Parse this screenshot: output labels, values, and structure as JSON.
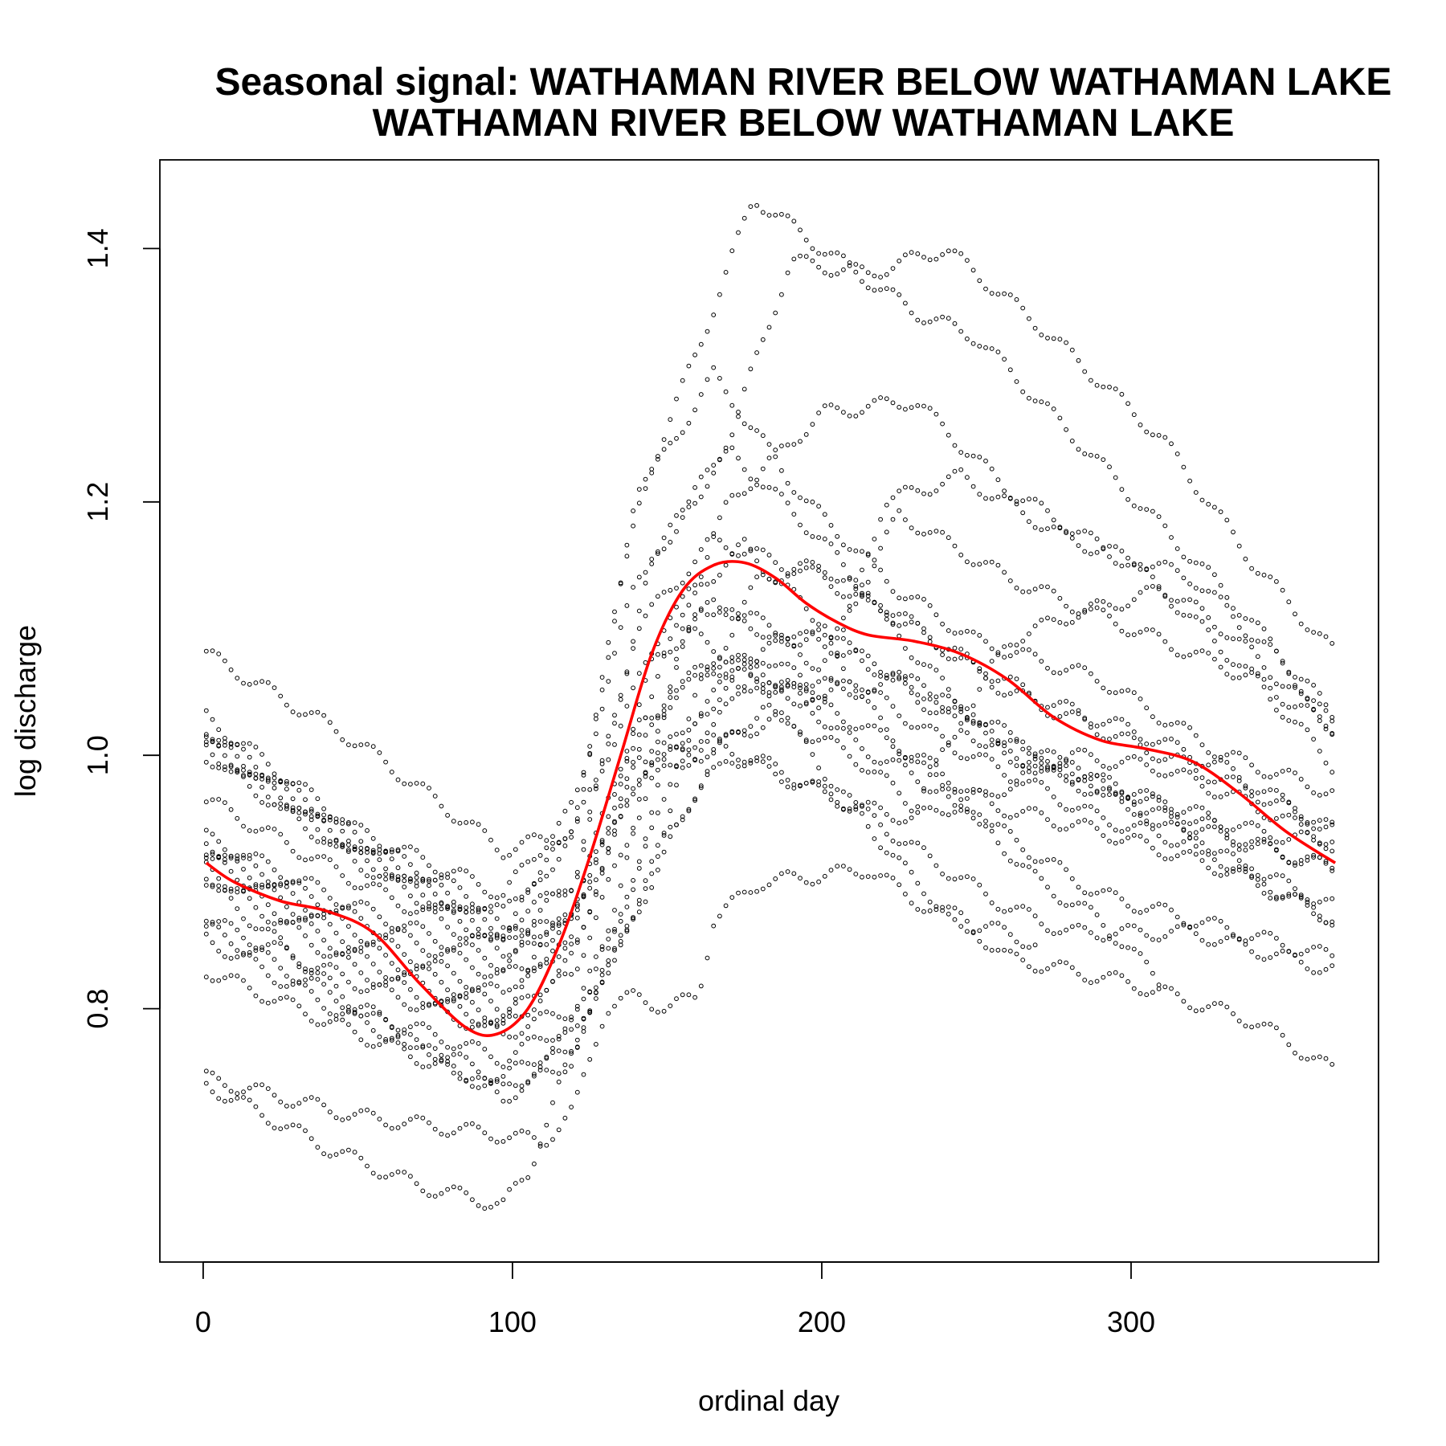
{
  "chart_data": {
    "type": "scatter",
    "title": "Seasonal signal: WATHAMAN RIVER BELOW WATHAMAN LAKE",
    "subtitle": "WATHAMAN RIVER BELOW WATHAMAN LAKE",
    "xlabel": "ordinal day",
    "ylabel": "log discharge",
    "xlim": [
      -14,
      380
    ],
    "ylim": [
      0.6,
      1.47
    ],
    "x_ticks": [
      0,
      100,
      200,
      300
    ],
    "x_tick_labels": [
      "0",
      "100",
      "200",
      "300"
    ],
    "y_ticks": [
      0.8,
      1.0,
      1.2,
      1.4
    ],
    "y_tick_labels": [
      "0.8",
      "1.0",
      "1.2",
      "1.4"
    ],
    "grid": false,
    "legend": "none",
    "marker": "open-circle",
    "point_color": "#000000",
    "series": [
      {
        "x": [
          1,
          50,
          97,
          120,
          150,
          175,
          205,
          240,
          260,
          300,
          330,
          366
        ],
        "y": [
          1.08,
          1.01,
          0.925,
          0.94,
          1.11,
          1.165,
          1.09,
          1.03,
          1.0,
          0.96,
          0.935,
          0.91
        ]
      },
      {
        "x": [
          1,
          50,
          97,
          120,
          140,
          170,
          200,
          230,
          260,
          300,
          340,
          366
        ],
        "y": [
          1.03,
          0.94,
          0.89,
          0.96,
          1.14,
          1.24,
          1.17,
          1.08,
          1.0,
          0.97,
          0.94,
          0.93
        ]
      },
      {
        "x": [
          1,
          50,
          97,
          120,
          140,
          165,
          195,
          225,
          250,
          290,
          330,
          366
        ],
        "y": [
          1.02,
          0.935,
          0.875,
          0.94,
          1.2,
          1.3,
          1.2,
          1.13,
          1.09,
          1.06,
          1.0,
          0.97
        ]
      },
      {
        "x": [
          1,
          50,
          97,
          120,
          145,
          170,
          190,
          215,
          240,
          270,
          310,
          340,
          366
        ],
        "y": [
          1.015,
          0.93,
          0.865,
          0.9,
          1.15,
          1.25,
          1.39,
          1.38,
          1.4,
          1.34,
          1.25,
          1.15,
          1.08
        ]
      },
      {
        "x": [
          1,
          50,
          97,
          120,
          140,
          160,
          178,
          200,
          230,
          250,
          290,
          330,
          366
        ],
        "y": [
          1.01,
          0.925,
          0.86,
          0.94,
          1.2,
          1.32,
          1.44,
          1.4,
          1.35,
          1.33,
          1.23,
          1.13,
          1.03
        ]
      },
      {
        "x": [
          1,
          50,
          97,
          120,
          145,
          170,
          200,
          230,
          260,
          300,
          330,
          366
        ],
        "y": [
          1.005,
          0.92,
          0.855,
          0.87,
          1.05,
          1.2,
          1.27,
          1.28,
          1.21,
          1.15,
          1.1,
          1.02
        ]
      },
      {
        "x": [
          1,
          50,
          97,
          120,
          140,
          165,
          200,
          230,
          260,
          300,
          340,
          366
        ],
        "y": [
          1.0,
          0.915,
          0.85,
          0.9,
          1.1,
          1.17,
          1.14,
          1.1,
          1.05,
          1.01,
          0.97,
          0.94
        ]
      },
      {
        "x": [
          1,
          50,
          97,
          120,
          150,
          170,
          200,
          220,
          245,
          280,
          320,
          350,
          366
        ],
        "y": [
          0.965,
          0.9,
          0.845,
          0.88,
          1.05,
          1.08,
          1.04,
          1.2,
          1.22,
          1.17,
          1.14,
          1.07,
          1.02
        ]
      },
      {
        "x": [
          1,
          50,
          97,
          120,
          145,
          160,
          180,
          200,
          225,
          260,
          300,
          340,
          366
        ],
        "y": [
          0.935,
          0.88,
          0.835,
          0.87,
          1.0,
          1.12,
          1.1,
          1.07,
          1.19,
          1.14,
          1.1,
          1.06,
          1.02
        ]
      },
      {
        "x": [
          1,
          50,
          97,
          120,
          140,
          170,
          200,
          230,
          255,
          290,
          330,
          366
        ],
        "y": [
          0.93,
          0.87,
          0.825,
          0.85,
          0.98,
          1.06,
          1.04,
          1.0,
          0.96,
          0.94,
          0.91,
          0.87
        ]
      },
      {
        "x": [
          1,
          50,
          97,
          120,
          145,
          165,
          185,
          210,
          235,
          260,
          280,
          300,
          330,
          366
        ],
        "y": [
          0.925,
          0.86,
          0.81,
          0.88,
          1.07,
          1.12,
          1.1,
          1.08,
          1.05,
          1.01,
          0.99,
          0.96,
          0.92,
          0.88
        ]
      },
      {
        "x": [
          1,
          50,
          97,
          120,
          140,
          165,
          190,
          210,
          240,
          270,
          290,
          320,
          366
        ],
        "y": [
          0.92,
          0.85,
          0.8,
          0.86,
          1.02,
          1.07,
          1.05,
          1.01,
          0.97,
          0.92,
          0.89,
          0.87,
          0.84
        ]
      },
      {
        "x": [
          1,
          50,
          97,
          120,
          140,
          160,
          185,
          210,
          230,
          260,
          280,
          310,
          340,
          366
        ],
        "y": [
          0.91,
          0.84,
          0.79,
          0.84,
          1.0,
          1.0,
          1.03,
          1.0,
          0.96,
          1.09,
          1.11,
          1.13,
          1.06,
          0.99
        ]
      },
      {
        "x": [
          1,
          50,
          97,
          120,
          145,
          165,
          185,
          210,
          230,
          255,
          280,
          310,
          340,
          366
        ],
        "y": [
          0.905,
          0.83,
          0.785,
          0.83,
          0.98,
          1.01,
          0.99,
          0.96,
          0.95,
          0.97,
          1.0,
          0.99,
          0.96,
          0.93
        ]
      },
      {
        "x": [
          1,
          50,
          97,
          120,
          140,
          160,
          180,
          200,
          225,
          250,
          275,
          300,
          330,
          366
        ],
        "y": [
          0.87,
          0.82,
          0.78,
          0.8,
          0.9,
          1.05,
          1.14,
          1.15,
          1.11,
          1.07,
          1.04,
          1.02,
          0.99,
          0.94
        ]
      },
      {
        "x": [
          1,
          50,
          97,
          120,
          140,
          160,
          180,
          200,
          225,
          250,
          280,
          310,
          340,
          366
        ],
        "y": [
          0.865,
          0.8,
          0.76,
          0.79,
          0.87,
          1.03,
          1.08,
          1.05,
          1.06,
          1.03,
          0.99,
          0.96,
          0.93,
          0.91
        ]
      },
      {
        "x": [
          1,
          50,
          97,
          120,
          145,
          165,
          190,
          215,
          240,
          265,
          290,
          320,
          350,
          366
        ],
        "y": [
          0.855,
          0.79,
          0.745,
          0.78,
          0.9,
          1.0,
          1.06,
          1.05,
          1.01,
          0.98,
          0.95,
          0.93,
          0.89,
          0.87
        ]
      },
      {
        "x": [
          1,
          50,
          97,
          120,
          150,
          170,
          190,
          210,
          240,
          260,
          280,
          320,
          350,
          366
        ],
        "y": [
          0.83,
          0.78,
          0.735,
          0.77,
          0.94,
          1.0,
          0.98,
          0.96,
          0.91,
          0.88,
          0.86,
          0.86,
          0.84,
          0.83
        ]
      },
      {
        "x": [
          1,
          50,
          97,
          120,
          140,
          155,
          175,
          200,
          230,
          260,
          300,
          340,
          366
        ],
        "y": [
          0.9,
          0.8,
          0.73,
          0.76,
          0.95,
          1.1,
          1.07,
          0.99,
          0.9,
          0.84,
          0.82,
          0.79,
          0.75
        ]
      },
      {
        "x": [
          1,
          50,
          97,
          110,
          120,
          130,
          140,
          150,
          160,
          165,
          180,
          200,
          215,
          240,
          260,
          270
        ],
        "y": [
          0.745,
          0.715,
          0.7,
          0.695,
          0.72,
          0.8,
          0.81,
          0.8,
          0.81,
          0.87,
          0.9,
          0.905,
          0.91,
          0.87,
          0.86,
          0.85
        ]
      },
      {
        "x": [
          1,
          40,
          70,
          97,
          105,
          120,
          135,
          150,
          165,
          180,
          200,
          220,
          250,
          270,
          290,
          310
        ],
        "y": [
          0.74,
          0.69,
          0.66,
          0.645,
          0.67,
          0.77,
          0.87,
          1.0,
          1.02,
          1.08,
          1.1,
          1.02,
          0.95,
          0.9,
          0.87,
          0.82
        ]
      }
    ],
    "smooth": {
      "color": "#ff0000",
      "x": [
        1,
        10,
        25,
        40,
        55,
        70,
        85,
        95,
        105,
        115,
        125,
        135,
        145,
        155,
        165,
        175,
        185,
        195,
        205,
        215,
        230,
        245,
        260,
        275,
        290,
        305,
        320,
        335,
        350,
        366
      ],
      "y": [
        0.915,
        0.9,
        0.885,
        0.877,
        0.86,
        0.82,
        0.785,
        0.78,
        0.8,
        0.85,
        0.92,
        1.0,
        1.08,
        1.13,
        1.15,
        1.152,
        1.14,
        1.12,
        1.105,
        1.095,
        1.09,
        1.08,
        1.06,
        1.03,
        1.012,
        1.005,
        0.995,
        0.97,
        0.94,
        0.915
      ]
    }
  }
}
